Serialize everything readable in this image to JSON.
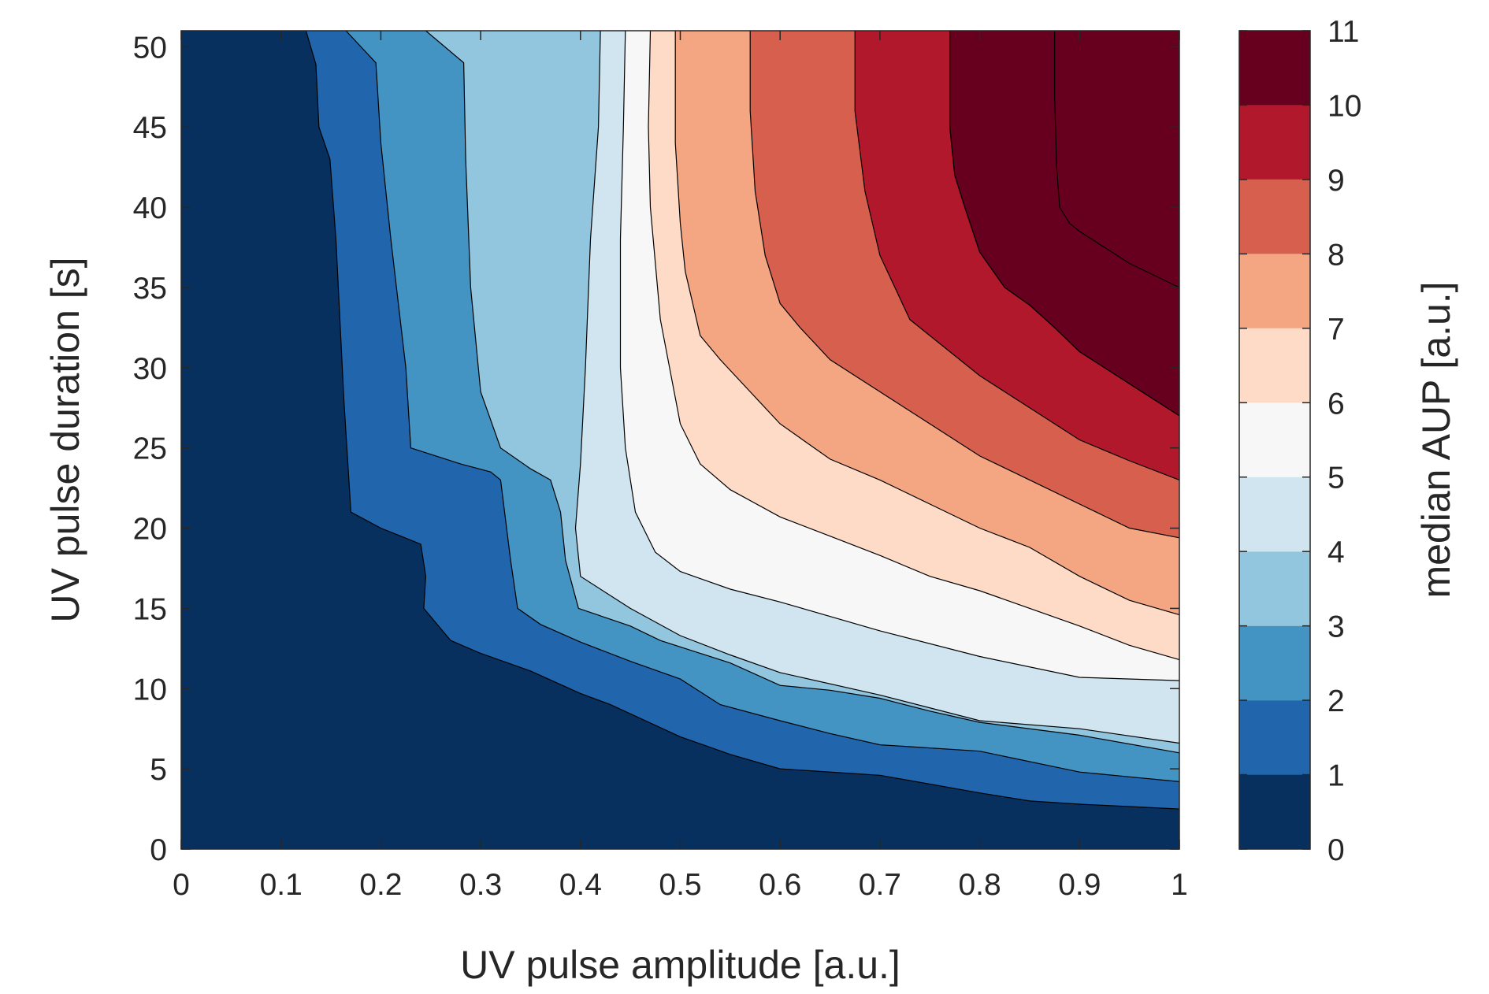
{
  "chart_data": {
    "type": "contour",
    "xlabel": "UV pulse amplitude [a.u.]",
    "ylabel": "UV pulse duration [s]",
    "colorbar_label": "median AUP [a.u.]",
    "xlim": [
      0,
      1
    ],
    "ylim": [
      0,
      51
    ],
    "xticks": [
      0,
      0.1,
      0.2,
      0.3,
      0.4,
      0.5,
      0.6,
      0.7,
      0.8,
      0.9,
      1
    ],
    "xtick_labels": [
      "0",
      "0.1",
      "0.2",
      "0.3",
      "0.4",
      "0.5",
      "0.6",
      "0.7",
      "0.8",
      "0.9",
      "1"
    ],
    "yticks": [
      0,
      5,
      10,
      15,
      20,
      25,
      30,
      35,
      40,
      45,
      50
    ],
    "ytick_labels": [
      "0",
      "5",
      "10",
      "15",
      "20",
      "25",
      "30",
      "35",
      "40",
      "45",
      "50"
    ],
    "colorbar_ticks": [
      "0",
      "1",
      "2",
      "3",
      "4",
      "5",
      "6",
      "7",
      "8",
      "9",
      "10",
      "11"
    ],
    "levels": [
      0,
      1,
      2,
      3,
      4,
      5,
      6,
      7,
      8,
      9,
      10,
      11
    ],
    "band_colors": [
      "#08305e",
      "#2166ac",
      "#4393c3",
      "#92c5de",
      "#d1e5f0",
      "#f7f7f7",
      "#fddbc7",
      "#f4a582",
      "#d6604d",
      "#b2182b",
      "#67001f"
    ],
    "grid": false,
    "contour_lines": [
      {
        "level": 1,
        "points": [
          [
            0.125,
            51
          ],
          [
            0.135,
            48.9
          ],
          [
            0.138,
            45
          ],
          [
            0.149,
            43
          ],
          [
            0.155,
            38
          ],
          [
            0.163,
            28
          ],
          [
            0.17,
            21
          ],
          [
            0.2,
            20
          ],
          [
            0.24,
            19
          ],
          [
            0.245,
            17
          ],
          [
            0.243,
            15
          ],
          [
            0.27,
            13
          ],
          [
            0.3,
            12.2
          ],
          [
            0.35,
            11.1
          ],
          [
            0.4,
            9.7
          ],
          [
            0.43,
            9
          ],
          [
            0.5,
            7
          ],
          [
            0.55,
            5.9
          ],
          [
            0.6,
            5
          ],
          [
            0.7,
            4.6
          ],
          [
            0.8,
            3.5
          ],
          [
            0.85,
            3
          ],
          [
            0.9,
            2.8
          ],
          [
            1.0,
            2.5
          ]
        ]
      },
      {
        "level": 2,
        "points": [
          [
            0.165,
            51
          ],
          [
            0.195,
            49
          ],
          [
            0.2,
            44
          ],
          [
            0.21,
            38
          ],
          [
            0.225,
            30
          ],
          [
            0.23,
            25
          ],
          [
            0.28,
            24
          ],
          [
            0.31,
            23.5
          ],
          [
            0.32,
            23
          ],
          [
            0.33,
            18
          ],
          [
            0.337,
            15
          ],
          [
            0.36,
            14
          ],
          [
            0.4,
            12.9
          ],
          [
            0.45,
            11.7
          ],
          [
            0.5,
            10.6
          ],
          [
            0.54,
            9
          ],
          [
            0.6,
            8
          ],
          [
            0.65,
            7.2
          ],
          [
            0.7,
            6.5
          ],
          [
            0.8,
            6.1
          ],
          [
            0.9,
            4.8
          ],
          [
            0.95,
            4.5
          ],
          [
            1.0,
            4.2
          ]
        ]
      },
      {
        "level": 3,
        "points": [
          [
            0.245,
            51
          ],
          [
            0.283,
            49
          ],
          [
            0.285,
            43
          ],
          [
            0.29,
            35
          ],
          [
            0.3,
            28.5
          ],
          [
            0.32,
            25
          ],
          [
            0.35,
            23.7
          ],
          [
            0.37,
            23
          ],
          [
            0.38,
            21
          ],
          [
            0.385,
            18
          ],
          [
            0.398,
            15
          ],
          [
            0.45,
            13.9
          ],
          [
            0.48,
            13
          ],
          [
            0.55,
            11.6
          ],
          [
            0.6,
            10.2
          ],
          [
            0.65,
            9.9
          ],
          [
            0.7,
            9.4
          ],
          [
            0.75,
            8.6
          ],
          [
            0.8,
            7.9
          ],
          [
            0.9,
            7.1
          ],
          [
            1.0,
            6
          ]
        ]
      },
      {
        "level": 4,
        "points": [
          [
            0.42,
            51
          ],
          [
            0.418,
            45
          ],
          [
            0.41,
            38
          ],
          [
            0.405,
            30
          ],
          [
            0.4,
            24
          ],
          [
            0.395,
            20
          ],
          [
            0.4,
            17
          ],
          [
            0.45,
            15
          ],
          [
            0.5,
            13.3
          ],
          [
            0.55,
            12.1
          ],
          [
            0.6,
            11
          ],
          [
            0.7,
            9.6
          ],
          [
            0.8,
            8
          ],
          [
            0.9,
            7.5
          ],
          [
            1.0,
            6.6
          ]
        ]
      },
      {
        "level": 5,
        "points": [
          [
            0.445,
            51
          ],
          [
            0.443,
            45
          ],
          [
            0.44,
            38
          ],
          [
            0.44,
            30
          ],
          [
            0.445,
            25
          ],
          [
            0.455,
            21
          ],
          [
            0.475,
            18.5
          ],
          [
            0.5,
            17.3
          ],
          [
            0.55,
            16.2
          ],
          [
            0.6,
            15.4
          ],
          [
            0.7,
            13.6
          ],
          [
            0.8,
            12
          ],
          [
            0.9,
            10.7
          ],
          [
            1.0,
            10.5
          ]
        ]
      },
      {
        "level": 6,
        "points": [
          [
            0.47,
            51
          ],
          [
            0.468,
            45
          ],
          [
            0.47,
            40
          ],
          [
            0.48,
            33
          ],
          [
            0.5,
            26.5
          ],
          [
            0.52,
            24
          ],
          [
            0.55,
            22.4
          ],
          [
            0.6,
            20.7
          ],
          [
            0.65,
            19.5
          ],
          [
            0.7,
            18.3
          ],
          [
            0.75,
            17
          ],
          [
            0.8,
            16.1
          ],
          [
            0.9,
            13.9
          ],
          [
            0.95,
            12.7
          ],
          [
            1.0,
            11.8
          ]
        ]
      },
      {
        "level": 7,
        "points": [
          [
            0.495,
            51
          ],
          [
            0.495,
            44
          ],
          [
            0.5,
            39
          ],
          [
            0.505,
            36
          ],
          [
            0.52,
            32
          ],
          [
            0.54,
            30.5
          ],
          [
            0.57,
            28.5
          ],
          [
            0.6,
            26.5
          ],
          [
            0.65,
            24.3
          ],
          [
            0.7,
            23
          ],
          [
            0.75,
            21.5
          ],
          [
            0.8,
            20
          ],
          [
            0.85,
            18.8
          ],
          [
            0.9,
            17
          ],
          [
            0.95,
            15.5
          ],
          [
            1.0,
            14.6
          ]
        ]
      },
      {
        "level": 8,
        "points": [
          [
            0.57,
            51
          ],
          [
            0.57,
            46
          ],
          [
            0.575,
            41
          ],
          [
            0.585,
            37
          ],
          [
            0.6,
            34
          ],
          [
            0.62,
            32.5
          ],
          [
            0.65,
            30.5
          ],
          [
            0.7,
            28.5
          ],
          [
            0.75,
            26.5
          ],
          [
            0.8,
            24.5
          ],
          [
            0.85,
            23
          ],
          [
            0.9,
            21.5
          ],
          [
            0.95,
            20
          ],
          [
            1.0,
            19.4
          ]
        ]
      },
      {
        "level": 9,
        "points": [
          [
            0.675,
            51
          ],
          [
            0.675,
            46
          ],
          [
            0.685,
            41
          ],
          [
            0.7,
            37
          ],
          [
            0.73,
            33
          ],
          [
            0.75,
            32
          ],
          [
            0.8,
            29.5
          ],
          [
            0.85,
            27.5
          ],
          [
            0.9,
            25.5
          ],
          [
            0.95,
            24.2
          ],
          [
            1.0,
            23
          ]
        ]
      },
      {
        "level": 10,
        "points": [
          [
            0.77,
            51
          ],
          [
            0.77,
            45
          ],
          [
            0.775,
            42
          ],
          [
            0.785,
            40
          ],
          [
            0.8,
            37.2
          ],
          [
            0.825,
            35
          ],
          [
            0.85,
            33.9
          ],
          [
            0.875,
            32.5
          ],
          [
            0.9,
            31
          ],
          [
            0.95,
            29
          ],
          [
            1.0,
            27
          ]
        ]
      },
      {
        "level": 11,
        "points": [
          [
            0.875,
            51
          ],
          [
            0.875,
            47
          ],
          [
            0.877,
            42.5
          ],
          [
            0.88,
            40
          ],
          [
            0.89,
            39
          ],
          [
            0.9,
            38.5
          ],
          [
            0.95,
            36.5
          ],
          [
            1.0,
            35
          ]
        ]
      },
      {
        "level": 11,
        "points": [
          [
            0.77,
            51
          ],
          [
            0.77,
            45
          ],
          [
            0.775,
            42
          ],
          [
            0.785,
            40
          ],
          [
            0.8,
            37.2
          ],
          [
            0.825,
            35
          ],
          [
            0.85,
            33.9
          ],
          [
            0.875,
            32.5
          ],
          [
            0.9,
            31
          ],
          [
            0.95,
            29
          ],
          [
            1.0,
            27
          ]
        ]
      }
    ]
  }
}
